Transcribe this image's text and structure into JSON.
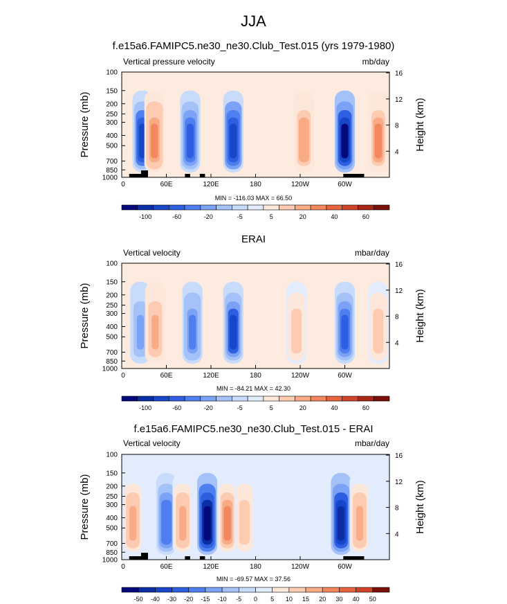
{
  "figure": {
    "title": "JJA"
  },
  "chart_data": [
    {
      "type": "heatmap",
      "title": "f.e15a6.FAMIPC5.ne30_ne30.Club_Test.015 (yrs 1979-1980)",
      "left_label": "Vertical pressure velocity",
      "right_label": "mb/day",
      "ylabel": "Pressure (mb)",
      "ylabel_right": "Height (km)",
      "x_ticks": [
        "0",
        "60E",
        "120E",
        "180",
        "120W",
        "60W"
      ],
      "y_ticks": [
        "100",
        "150",
        "200",
        "250",
        "300",
        "400",
        "500",
        "700",
        "850",
        "1000"
      ],
      "height_ticks": [
        "4",
        "8",
        "12",
        "16"
      ],
      "min_max": "MIN = -116.03  MAX =  66.50",
      "colorbar_labels": [
        "-100",
        "-60",
        "-20",
        "-5",
        "5",
        "20",
        "40",
        "60"
      ],
      "colorbar_colors": [
        "#040a7c",
        "#0a2ea4",
        "#1747c8",
        "#2d5fe0",
        "#4f7fee",
        "#7ba2f4",
        "#a4c2f8",
        "#c8dbfb",
        "#e2ecfd",
        "#fde7da",
        "#fccbb2",
        "#f9ab86",
        "#f3875e",
        "#e6643e",
        "#cf4428",
        "#a82716",
        "#7a1008"
      ],
      "features": [
        {
          "lon": 28,
          "strength": -85
        },
        {
          "lon": 44,
          "strength": 55
        },
        {
          "lon": 92,
          "strength": -75
        },
        {
          "lon": 150,
          "strength": -90
        },
        {
          "lon": 245,
          "strength": 45
        },
        {
          "lon": 300,
          "strength": -110
        },
        {
          "lon": 345,
          "strength": 50
        }
      ]
    },
    {
      "type": "heatmap",
      "title": "ERAI",
      "left_label": "Vertical velocity",
      "right_label": "mbar/day",
      "ylabel": "Pressure (mb)",
      "ylabel_right": "Height (km)",
      "x_ticks": [
        "0",
        "60E",
        "120E",
        "180",
        "120W",
        "60W"
      ],
      "y_ticks": [
        "100",
        "150",
        "200",
        "250",
        "300",
        "400",
        "500",
        "700",
        "850",
        "1000"
      ],
      "height_ticks": [
        "4",
        "8",
        "12",
        "16"
      ],
      "min_max": "MIN = -84.21  MAX =  42.30",
      "colorbar_labels": [
        "-100",
        "-60",
        "-20",
        "-5",
        "5",
        "20",
        "40",
        "60"
      ],
      "colorbar_colors": [
        "#040a7c",
        "#0a2ea4",
        "#1747c8",
        "#2d5fe0",
        "#4f7fee",
        "#7ba2f4",
        "#a4c2f8",
        "#c8dbfb",
        "#e2ecfd",
        "#fde7da",
        "#fccbb2",
        "#f9ab86",
        "#f3875e",
        "#e6643e",
        "#cf4428",
        "#a82716",
        "#7a1008"
      ],
      "features": [
        {
          "lon": 25,
          "strength": -40
        },
        {
          "lon": 45,
          "strength": 40
        },
        {
          "lon": 95,
          "strength": -55
        },
        {
          "lon": 150,
          "strength": -80
        },
        {
          "lon": 235,
          "strength": 35
        },
        {
          "lon": 300,
          "strength": -70
        },
        {
          "lon": 345,
          "strength": 30
        }
      ]
    },
    {
      "type": "heatmap",
      "title": "f.e15a6.FAMIPC5.ne30_ne30.Club_Test.015 - ERAI",
      "left_label": "Vertical velocity",
      "right_label": "mbar/day",
      "ylabel": "Pressure (mb)",
      "ylabel_right": "Height (km)",
      "x_ticks": [
        "0",
        "60E",
        "120E",
        "180",
        "120W",
        "60W"
      ],
      "y_ticks": [
        "100",
        "150",
        "200",
        "250",
        "300",
        "400",
        "500",
        "700",
        "850",
        "1000"
      ],
      "height_ticks": [
        "4",
        "8",
        "12",
        "16"
      ],
      "min_max": "MIN = -69.57  MAX =  37.56",
      "colorbar_labels": [
        "-50",
        "-40",
        "-30",
        "-20",
        "-15",
        "-10",
        "-5",
        "0",
        "5",
        "10",
        "15",
        "20",
        "30",
        "40",
        "50"
      ],
      "colorbar_colors": [
        "#040a7c",
        "#0a2ea4",
        "#1747c8",
        "#2d5fe0",
        "#4f7fee",
        "#7ba2f4",
        "#a4c2f8",
        "#c8dbfb",
        "#e2ecfd",
        "#fde7da",
        "#fccbb2",
        "#f9ab86",
        "#f3875e",
        "#e6643e",
        "#cf4428",
        "#7a1008"
      ],
      "features": [
        {
          "lon": 15,
          "strength": 30
        },
        {
          "lon": 60,
          "strength": -35
        },
        {
          "lon": 82,
          "strength": 30
        },
        {
          "lon": 115,
          "strength": -70
        },
        {
          "lon": 142,
          "strength": 35
        },
        {
          "lon": 165,
          "strength": 25
        },
        {
          "lon": 295,
          "strength": -60
        },
        {
          "lon": 320,
          "strength": 30
        }
      ]
    }
  ]
}
